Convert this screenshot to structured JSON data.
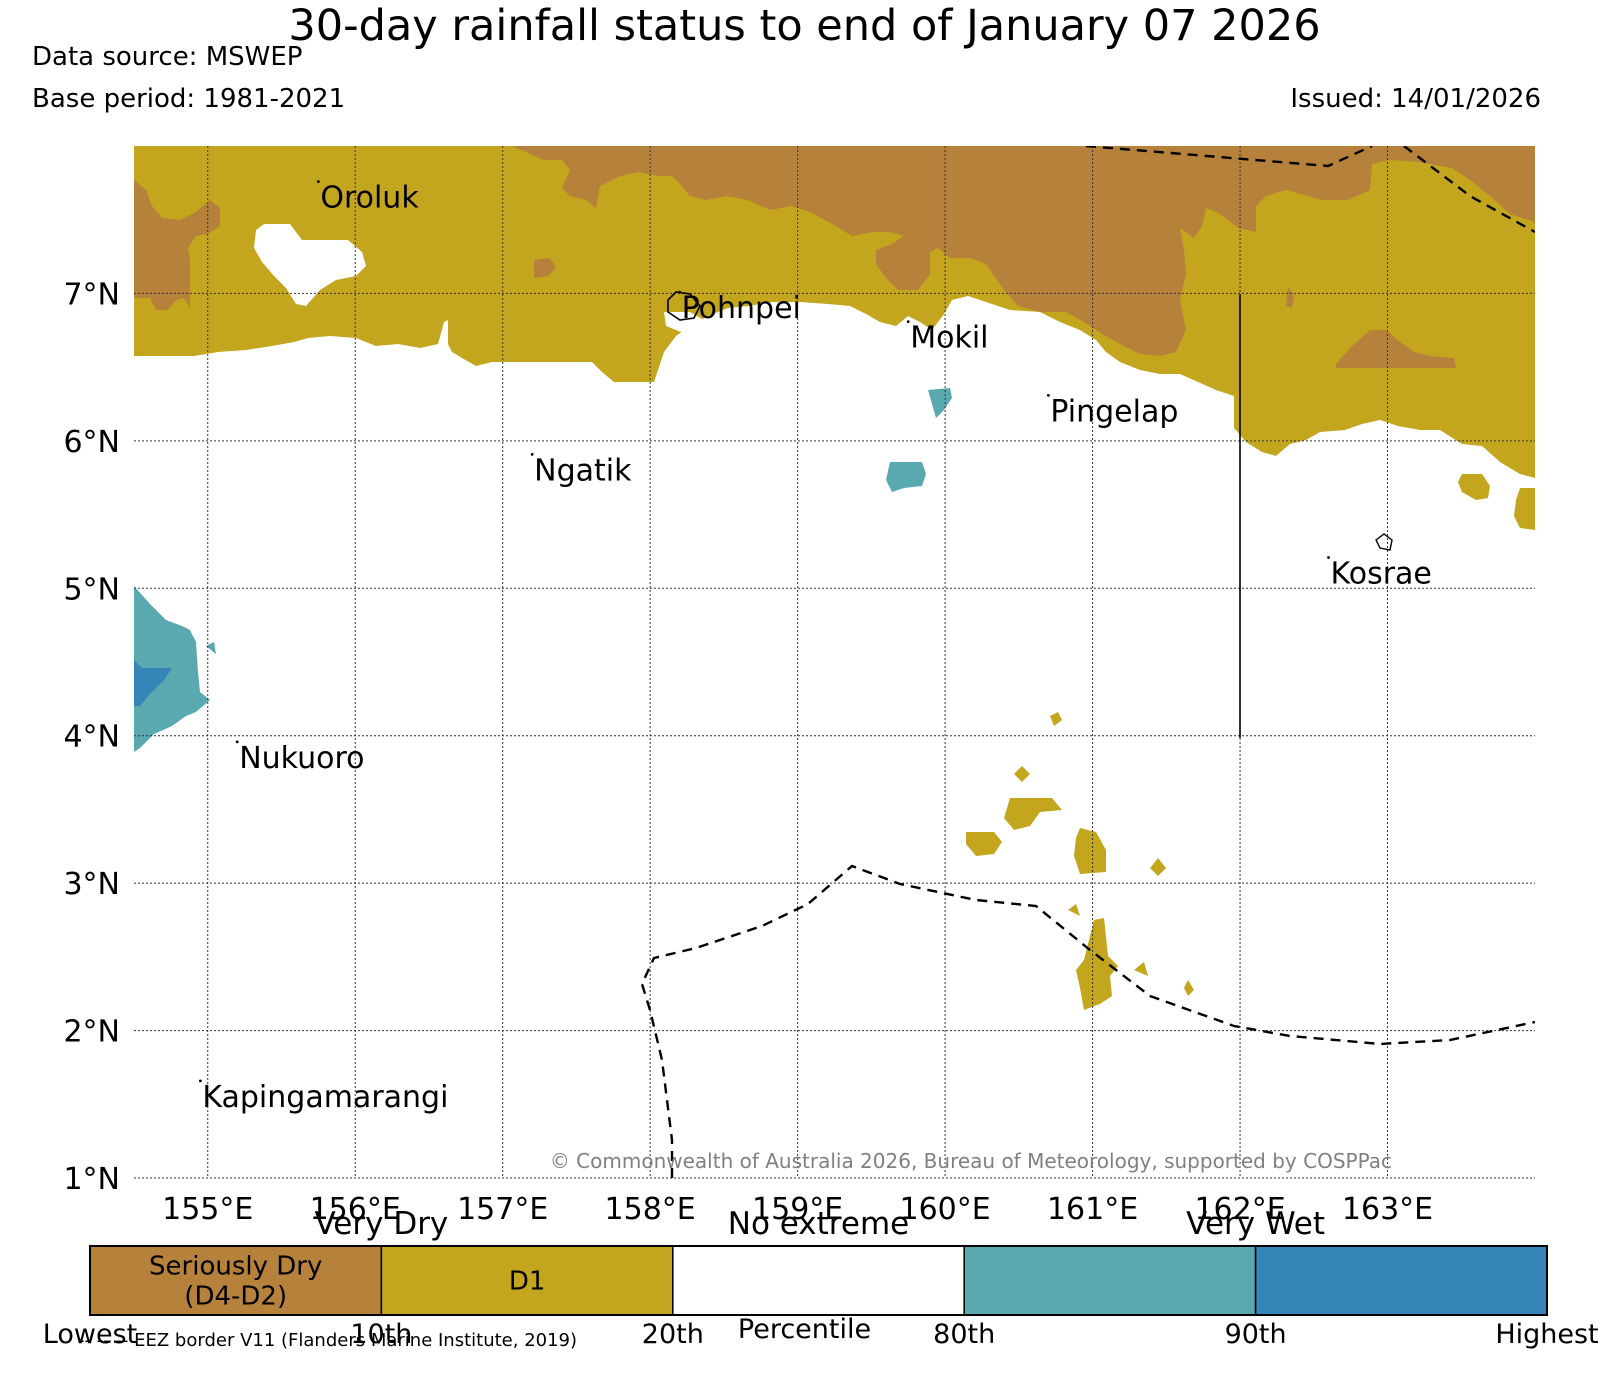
{
  "title": "30-day rainfall status to end of January 07 2026",
  "data_source": "Data source: MSWEP",
  "base_period": "Base period: 1981-2021",
  "issued": "Issued: 14/01/2026",
  "copyright": "© Commonwealth of Australia 2026, Bureau of Meteorology, supported by COSPPac",
  "map": {
    "lon_range": [
      154.5,
      164.0
    ],
    "lat_range": [
      1.0,
      8.0
    ],
    "lon_ticks": [
      {
        "value": 155,
        "label": "155°E"
      },
      {
        "value": 156,
        "label": "156°E"
      },
      {
        "value": 157,
        "label": "157°E"
      },
      {
        "value": 158,
        "label": "158°E"
      },
      {
        "value": 159,
        "label": "159°E"
      },
      {
        "value": 160,
        "label": "160°E"
      },
      {
        "value": 161,
        "label": "161°E"
      },
      {
        "value": 162,
        "label": "162°E"
      },
      {
        "value": 163,
        "label": "163°E"
      }
    ],
    "lat_ticks": [
      {
        "value": 1,
        "label": "1°N"
      },
      {
        "value": 2,
        "label": "2°N"
      },
      {
        "value": 3,
        "label": "3°N"
      },
      {
        "value": 4,
        "label": "4°N"
      },
      {
        "value": 5,
        "label": "5°N"
      },
      {
        "value": 6,
        "label": "6°N"
      },
      {
        "value": 7,
        "label": "7°N"
      }
    ],
    "places": [
      {
        "name": "Oroluk",
        "lon": 155.75,
        "lat": 7.65
      },
      {
        "name": "Pohnpei",
        "lon": 158.2,
        "lat": 6.9
      },
      {
        "name": "Mokil",
        "lon": 159.75,
        "lat": 6.7
      },
      {
        "name": "Pingelap",
        "lon": 160.7,
        "lat": 6.2
      },
      {
        "name": "Ngatik",
        "lon": 157.2,
        "lat": 5.8
      },
      {
        "name": "Kosrae",
        "lon": 162.6,
        "lat": 5.1
      },
      {
        "name": "Nukuoro",
        "lon": 155.2,
        "lat": 3.85
      },
      {
        "name": "Kapingamarangi",
        "lon": 154.95,
        "lat": 1.55
      }
    ],
    "colors": {
      "seriously_dry": "#b5813b",
      "d1": "#c4a51e",
      "no_extreme": "#ffffff",
      "very_wet": "#5ba9b0",
      "highest": "#3585b8"
    }
  },
  "colorbar": {
    "groups": [
      "Very Dry",
      "No extreme",
      "Very Wet"
    ],
    "segments": [
      {
        "label": "Seriously Dry\n(D4-D2)",
        "color": "#b5813b"
      },
      {
        "label": "D1",
        "color": "#c4a51e"
      },
      {
        "label": "",
        "color": "#ffffff"
      },
      {
        "label": "",
        "color": "#5ba9b0"
      },
      {
        "label": "",
        "color": "#3585b8"
      }
    ],
    "ticks": [
      "Lowest",
      "10th",
      "20th",
      "80th",
      "90th",
      "Highest"
    ],
    "xlabel": "Percentile"
  },
  "eez_note": "-- -- -- EEZ border V11 (Flanders Marine Institute, 2019)"
}
